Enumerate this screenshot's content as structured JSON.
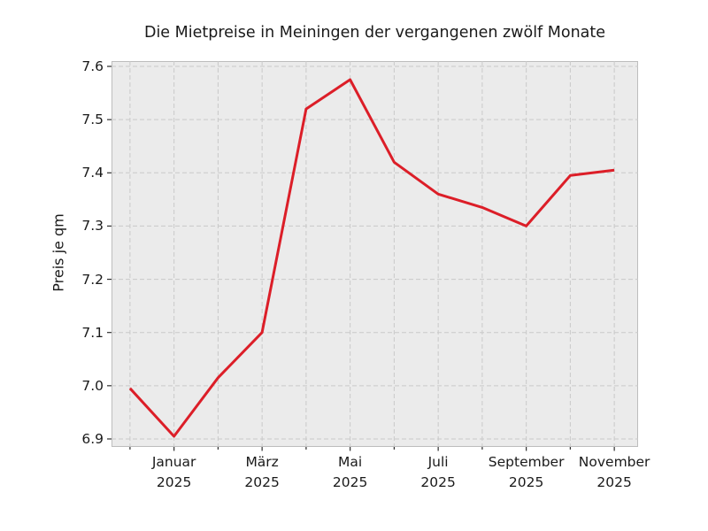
{
  "chart_data": {
    "type": "line",
    "title": "Die Mietpreise in Meiningen der vergangenen zwölf Monate",
    "ylabel": "Preis je qm",
    "xlabel": "",
    "n_points": 12,
    "values": [
      6.995,
      6.905,
      7.015,
      7.1,
      7.52,
      7.575,
      7.42,
      7.36,
      7.335,
      7.3,
      7.395,
      7.405
    ],
    "yticks": [
      "6.9",
      "7.0",
      "7.1",
      "7.2",
      "7.3",
      "7.4",
      "7.5",
      "7.6"
    ],
    "xticks": [
      {
        "index": 1,
        "label": "Januar",
        "year": "2025"
      },
      {
        "index": 3,
        "label": "März",
        "year": "2025"
      },
      {
        "index": 5,
        "label": "Mai",
        "year": "2025"
      },
      {
        "index": 7,
        "label": "Juli",
        "year": "2025"
      },
      {
        "index": 9,
        "label": "September",
        "year": "2025"
      },
      {
        "index": 11,
        "label": "November",
        "year": "2025"
      }
    ],
    "ylim": [
      6.885,
      7.61
    ],
    "xlim_index": [
      -0.42,
      11.54
    ],
    "grid": "dashed-both-axes",
    "legend": "none",
    "colors": {
      "line": "#dc1e28",
      "plot_background": "#ebebeb",
      "grid": "#c9c9c9",
      "spine": "#bdbdbd",
      "tick": "#2e2e2e",
      "text": "#1a1a1a",
      "figure_background": "#ffffff"
    }
  }
}
